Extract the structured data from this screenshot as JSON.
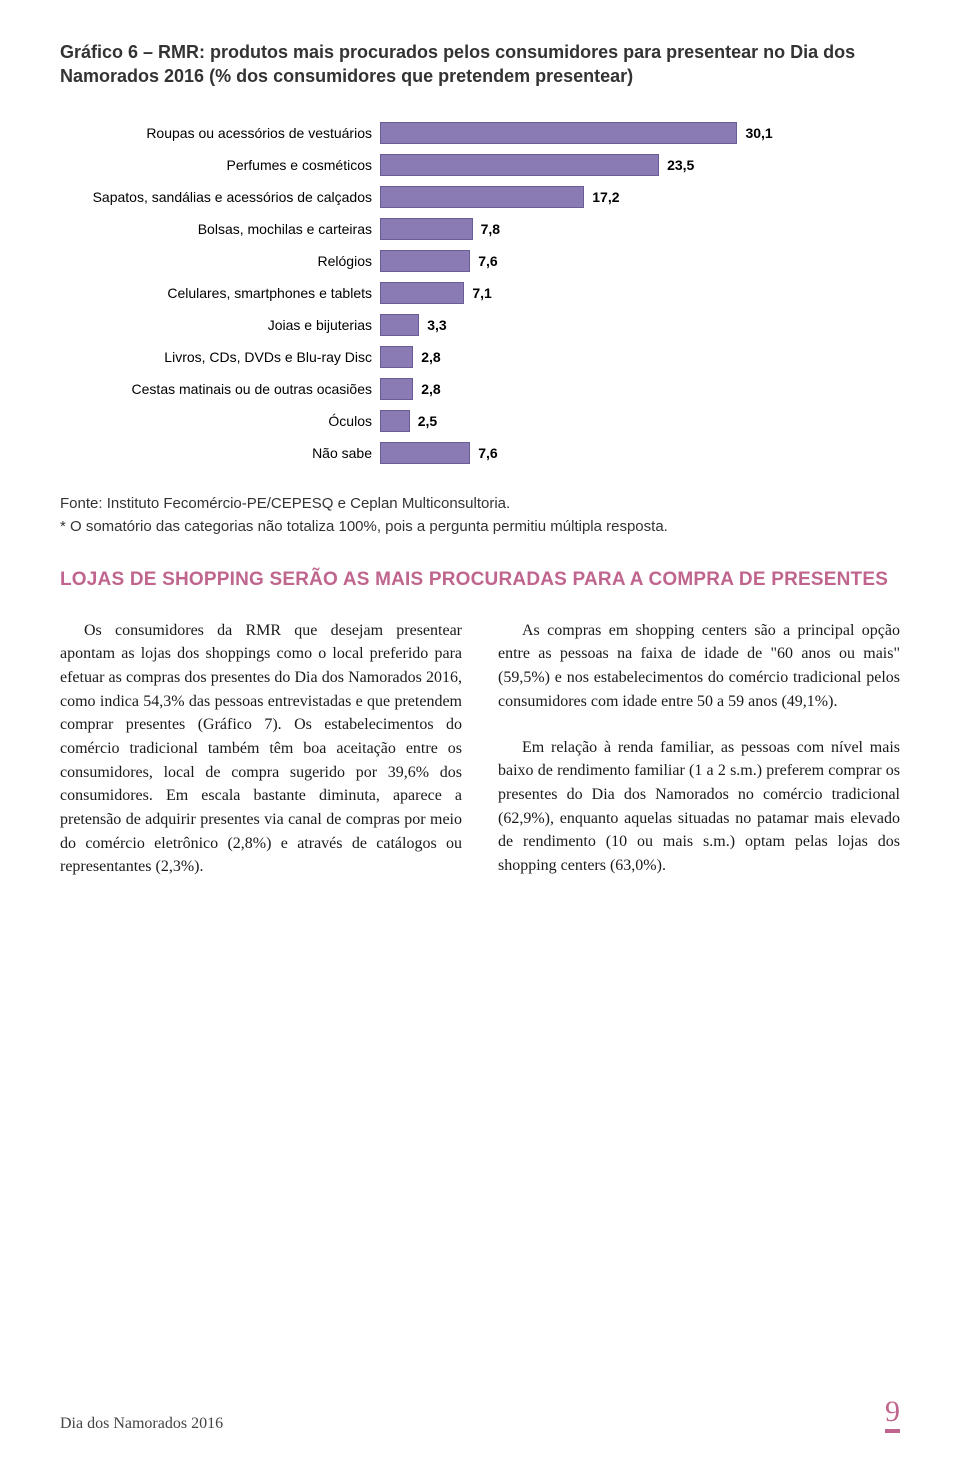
{
  "chart_title": "Gráfico 6 – RMR: produtos mais procurados pelos consumidores para presentear no Dia dos Namorados 2016 (% dos consumidores que pretendem presentear)",
  "chart": {
    "type": "bar",
    "categories": [
      "Roupas ou acessórios de vestuários",
      "Perfumes e cosméticos",
      "Sapatos, sandálias e acessórios de calçados",
      "Bolsas, mochilas e carteiras",
      "Relógios",
      "Celulares, smartphones e tablets",
      "Joias e bijuterias",
      "Livros, CDs, DVDs e Blu-ray Disc",
      "Cestas matinais ou de outras ocasiões",
      "Óculos",
      "Não sabe"
    ],
    "values": [
      30.1,
      23.5,
      17.2,
      7.8,
      7.6,
      7.1,
      3.3,
      2.8,
      2.8,
      2.5,
      7.6
    ],
    "value_labels": [
      "30,1",
      "23,5",
      "17,2",
      "7,8",
      "7,6",
      "7,1",
      "3,3",
      "2,8",
      "2,8",
      "2,5",
      "7,6"
    ],
    "xlim": [
      0,
      32
    ],
    "bar_color": "#8a7bb5",
    "bar_border_color": "#6a5c96",
    "label_fontsize": 14,
    "value_fontsize": 14,
    "value_fontweight": "bold",
    "background_color": "#ffffff"
  },
  "source": "Fonte: Instituto Fecomércio-PE/CEPESQ e Ceplan Multiconsultoria.",
  "footnote": "* O somatório das categorias não totaliza 100%, pois a pergunta permitiu múltipla resposta.",
  "section_heading": "LOJAS DE SHOPPING SERÃO AS MAIS PROCURADAS PARA A COMPRA DE PRESENTES",
  "body": {
    "col1": {
      "p1": "Os consumidores da RMR que desejam presentear apontam as lojas dos shoppings como o local preferido para efetuar as compras dos presentes do Dia dos Namorados 2016, como indica 54,3% das pessoas entrevistadas e que pretendem comprar presentes (Gráfico 7). Os estabelecimentos do comércio tradicional também têm boa aceitação entre os consumidores, local de compra sugerido por 39,6% dos consumidores. Em escala bastante diminuta, aparece a pretensão de adquirir presentes via canal de compras por meio do comércio eletrônico (2,8%) e através de catálogos ou representantes (2,3%)."
    },
    "col2": {
      "p1": "As compras em shopping centers são a principal opção entre as pessoas na faixa de idade de \"60 anos ou mais\" (59,5%) e nos estabelecimentos do comércio tradicional pelos consumidores com idade entre 50 a 59 anos (49,1%).",
      "p2": "Em relação à renda familiar, as pessoas com nível mais baixo de rendimento familiar (1 a 2 s.m.) preferem comprar os presentes do Dia dos Namorados no comércio tradicional (62,9%), enquanto aquelas situadas no patamar mais elevado de rendimento (10 ou mais s.m.) optam pelas lojas dos shopping centers (63,0%)."
    }
  },
  "footer": {
    "left": "Dia dos Namorados 2016",
    "page": "9"
  },
  "colors": {
    "heading": "#c0658e",
    "text": "#1a1a1a",
    "meta": "#333333"
  }
}
